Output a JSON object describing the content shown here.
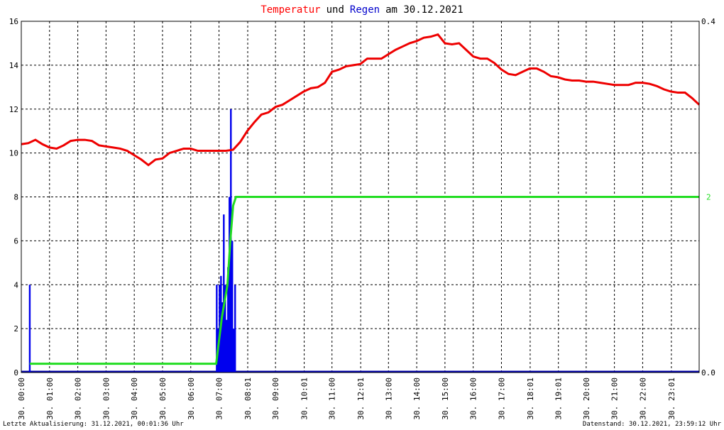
{
  "chart_data": {
    "type": "line",
    "title_parts": [
      {
        "text": "Temperatur",
        "color": "#ff0000"
      },
      {
        "text": "und",
        "color": "#000000"
      },
      {
        "text": "Regen",
        "color": "#0000cc"
      },
      {
        "text": "am 30.12.2021",
        "color": "#000000"
      }
    ],
    "xlim": [
      0,
      24
    ],
    "xticks": [
      {
        "value": 0,
        "label": "30. 00:00"
      },
      {
        "value": 1,
        "label": "30. 01:00"
      },
      {
        "value": 2,
        "label": "30. 02:00"
      },
      {
        "value": 3,
        "label": "30. 03:00"
      },
      {
        "value": 4,
        "label": "30. 04:00"
      },
      {
        "value": 5,
        "label": "30. 05:00"
      },
      {
        "value": 6,
        "label": "30. 06:00"
      },
      {
        "value": 7,
        "label": "30. 07:00"
      },
      {
        "value": 8.0167,
        "label": "30. 08:01"
      },
      {
        "value": 9,
        "label": "30. 09:00"
      },
      {
        "value": 10.0167,
        "label": "30. 10:01"
      },
      {
        "value": 11,
        "label": "30. 11:00"
      },
      {
        "value": 12.0167,
        "label": "30. 12:01"
      },
      {
        "value": 13,
        "label": "30. 13:00"
      },
      {
        "value": 14,
        "label": "30. 14:00"
      },
      {
        "value": 15,
        "label": "30. 15:00"
      },
      {
        "value": 16,
        "label": "30. 16:00"
      },
      {
        "value": 17,
        "label": "30. 17:00"
      },
      {
        "value": 18.0167,
        "label": "30. 18:01"
      },
      {
        "value": 19.0167,
        "label": "30. 19:01"
      },
      {
        "value": 20,
        "label": "30. 20:00"
      },
      {
        "value": 21,
        "label": "30. 21:00"
      },
      {
        "value": 22,
        "label": "30. 22:00"
      },
      {
        "value": 23.0167,
        "label": "30. 23:01"
      }
    ],
    "ylim": [
      0,
      16
    ],
    "yticks": [
      0,
      2,
      4,
      6,
      8,
      10,
      12,
      14,
      16
    ],
    "y2lim": [
      0,
      0.4
    ],
    "y2ticks": [
      {
        "value": 0,
        "label": "0.0"
      },
      0.4
    ],
    "grid": true,
    "series": [
      {
        "kind": "line",
        "color": "#ee0000",
        "x": [
          0,
          0.25,
          0.5,
          0.75,
          1,
          1.25,
          1.5,
          1.75,
          2,
          2.25,
          2.5,
          2.75,
          3,
          3.25,
          3.5,
          3.75,
          4,
          4.25,
          4.5,
          4.75,
          5,
          5.25,
          5.5,
          5.75,
          6,
          6.25,
          6.5,
          6.75,
          7,
          7.25,
          7.5,
          7.75,
          8,
          8.25,
          8.5,
          8.75,
          9,
          9.25,
          9.5,
          9.75,
          10,
          10.25,
          10.5,
          10.75,
          11,
          11.25,
          11.5,
          11.75,
          12,
          12.25,
          12.5,
          12.75,
          13,
          13.25,
          13.5,
          13.75,
          14,
          14.25,
          14.5,
          14.75,
          15,
          15.25,
          15.5,
          15.75,
          16,
          16.25,
          16.5,
          16.75,
          17,
          17.25,
          17.5,
          17.75,
          18,
          18.25,
          18.5,
          18.75,
          19,
          19.25,
          19.5,
          19.75,
          20,
          20.25,
          20.5,
          20.75,
          21,
          21.25,
          21.5,
          21.75,
          22,
          22.25,
          22.5,
          22.75,
          23,
          23.25,
          23.5,
          23.75,
          24
        ],
        "values": [
          10.4,
          10.45,
          10.6,
          10.4,
          10.25,
          10.2,
          10.35,
          10.55,
          10.6,
          10.6,
          10.55,
          10.35,
          10.3,
          10.25,
          10.2,
          10.1,
          9.9,
          9.7,
          9.45,
          9.7,
          9.75,
          10.0,
          10.1,
          10.2,
          10.2,
          10.1,
          10.1,
          10.1,
          10.1,
          10.1,
          10.15,
          10.5,
          11.0,
          11.4,
          11.75,
          11.85,
          12.1,
          12.2,
          12.4,
          12.6,
          12.8,
          12.95,
          13.0,
          13.2,
          13.7,
          13.8,
          13.95,
          14.0,
          14.05,
          14.3,
          14.3,
          14.3,
          14.5,
          14.7,
          14.85,
          15.0,
          15.1,
          15.25,
          15.3,
          15.4,
          15.0,
          14.95,
          15.0,
          14.7,
          14.4,
          14.3,
          14.3,
          14.1,
          13.8,
          13.6,
          13.55,
          13.7,
          13.85,
          13.85,
          13.7,
          13.5,
          13.45,
          13.35,
          13.3,
          13.3,
          13.25,
          13.25,
          13.2,
          13.15,
          13.1,
          13.1,
          13.1,
          13.2,
          13.2,
          13.15,
          13.05,
          12.9,
          12.8,
          12.75,
          12.75,
          12.5,
          12.2
        ]
      },
      {
        "kind": "line",
        "color": "#22dd22",
        "x": [
          0.3,
          6.9,
          7.1,
          7.3,
          7.4,
          7.5,
          7.6,
          24
        ],
        "values": [
          0.4,
          0.4,
          2.5,
          4,
          6,
          7.6,
          8,
          8
        ]
      },
      {
        "kind": "bar",
        "axis": "y2",
        "color": "#0000ee",
        "x": [
          0.3,
          6.92,
          6.97,
          7.02,
          7.07,
          7.12,
          7.17,
          7.22,
          7.27,
          7.32,
          7.37,
          7.42,
          7.47,
          7.52,
          7.57
        ],
        "values": [
          0.1,
          0.1,
          0.05,
          0.1,
          0.11,
          0.08,
          0.18,
          0.1,
          0.06,
          0.12,
          0.2,
          0.3,
          0.15,
          0.05,
          0.1
        ]
      }
    ],
    "annotations": [
      {
        "text": "2",
        "color": "#22dd22"
      }
    ]
  },
  "footer": {
    "left": "Letzte Aktualisierung: 31.12.2021, 00:01:36 Uhr",
    "right": "Datenstand: 30.12.2021, 23:59:12 Uhr"
  }
}
